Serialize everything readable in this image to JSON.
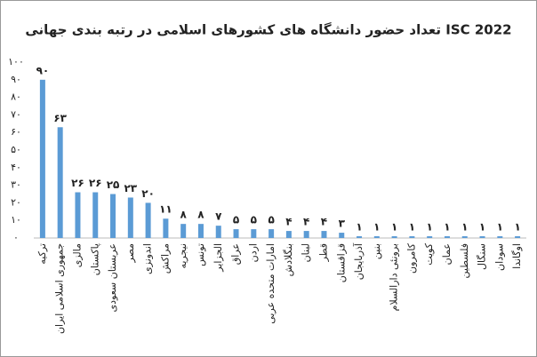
{
  "chart_data": {
    "type": "bar",
    "title": "تعداد حضور دانشگاه های کشورهای اسلامی در رتبه بندی جهانی ISC 2022",
    "categories": [
      "ترکیه",
      "جمهوری اسلامی ایران",
      "مالزی",
      "پاکستان",
      "عربستان سعودی",
      "مصر",
      "اندونزی",
      "مراکش",
      "نیجریه",
      "تونس",
      "الجزایر",
      "عراق",
      "اردن",
      "امارات متحده عربی",
      "بنگلادش",
      "لبنان",
      "قطر",
      "قزاقستان",
      "آذربایجان",
      "بنین",
      "برونئی دارالسلام",
      "کامرون",
      "کویت",
      "عمان",
      "فلسطین",
      "سنگال",
      "سودان",
      "اوگاندا"
    ],
    "values": [
      90,
      63,
      26,
      26,
      25,
      23,
      20,
      11,
      8,
      8,
      7,
      5,
      5,
      5,
      4,
      4,
      4,
      3,
      1,
      1,
      1,
      1,
      1,
      1,
      1,
      1,
      1,
      1
    ],
    "value_labels": [
      "۹۰",
      "۶۳",
      "۲۶",
      "۲۶",
      "۲۵",
      "۲۳",
      "۲۰",
      "۱۱",
      "۸",
      "۸",
      "۷",
      "۵",
      "۵",
      "۵",
      "۴",
      "۴",
      "۴",
      "۳",
      "۱",
      "۱",
      "۱",
      "۱",
      "۱",
      "۱",
      "۱",
      "۱",
      "۱",
      "۱"
    ],
    "color": "#5b9bd5",
    "ylim": [
      0,
      100
    ],
    "yticks": [
      {
        "value": 0,
        "label": "۰"
      },
      {
        "value": 10,
        "label": "۱۰"
      },
      {
        "value": 20,
        "label": "۲۰"
      },
      {
        "value": 30,
        "label": "۳۰"
      },
      {
        "value": 40,
        "label": "۴۰"
      },
      {
        "value": 50,
        "label": "۵۰"
      },
      {
        "value": 60,
        "label": "۶۰"
      },
      {
        "value": 70,
        "label": "۷۰"
      },
      {
        "value": 80,
        "label": "۸۰"
      },
      {
        "value": 90,
        "label": "۹۰"
      },
      {
        "value": 100,
        "label": "۱۰۰"
      }
    ],
    "grid": false
  }
}
